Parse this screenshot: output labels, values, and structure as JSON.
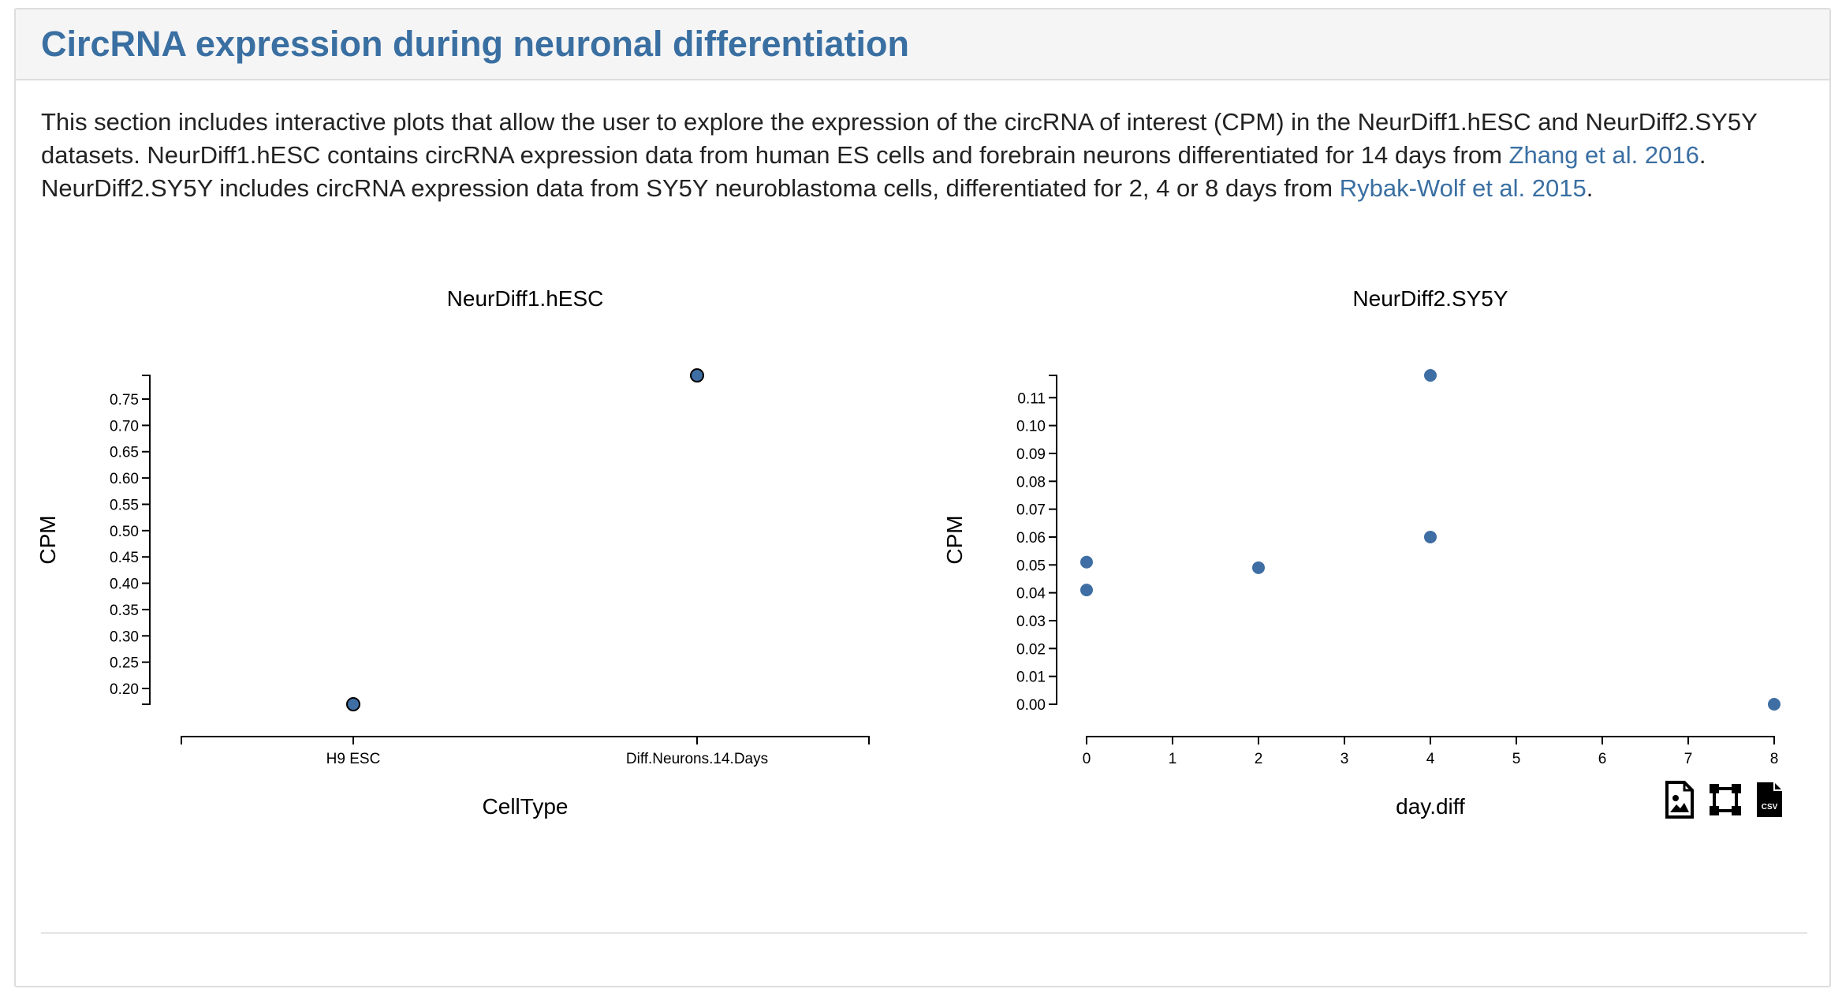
{
  "section": {
    "title": "CircRNA expression during neuronal differentiation",
    "intro": {
      "part1": "This section includes interactive plots that allow the user to explore the expression of the circRNA of interest (CPM) in the NeurDiff1.hESC and NeurDiff2.SY5Y datasets. NeurDiff1.hESC contains circRNA expression data from human ES cells and forebrain neurons differentiated for 14 days from ",
      "link1": "Zhang et al. 2016",
      "part2": ". NeurDiff2.SY5Y includes circRNA expression data from SY5Y neuroblastoma cells, differentiated for 2, 4 or 8 days from ",
      "link2": "Rybak-Wolf et al. 2015",
      "part3": "."
    }
  },
  "toolbar": {
    "icons": [
      "image-download-icon",
      "zoom-extent-icon",
      "csv-download-icon"
    ],
    "csv_label": "CSV"
  },
  "colors": {
    "point": "#3e6ea3",
    "accent": "#3a6fa2"
  },
  "chart_data": [
    {
      "type": "scatter",
      "title": "NeurDiff1.hESC",
      "xlabel": "CellType",
      "ylabel": "CPM",
      "categories": [
        "H9 ESC",
        "Diff.Neurons.14.Days"
      ],
      "points": [
        {
          "x": "H9 ESC",
          "y": 0.17
        },
        {
          "x": "Diff.Neurons.14.Days",
          "y": 0.795
        }
      ],
      "yticks": [
        0.2,
        0.25,
        0.3,
        0.35,
        0.4,
        0.45,
        0.5,
        0.55,
        0.6,
        0.65,
        0.7,
        0.75
      ],
      "ylim": [
        0.17,
        0.795
      ],
      "grid": false
    },
    {
      "type": "scatter",
      "title": "NeurDiff2.SY5Y",
      "xlabel": "day.diff",
      "ylabel": "CPM",
      "x": [
        0,
        0,
        2,
        4,
        4,
        8
      ],
      "y": [
        0.051,
        0.041,
        0.049,
        0.118,
        0.06,
        0.0
      ],
      "xticks": [
        0,
        1,
        2,
        3,
        4,
        5,
        6,
        7,
        8
      ],
      "yticks": [
        0.0,
        0.01,
        0.02,
        0.03,
        0.04,
        0.05,
        0.06,
        0.07,
        0.08,
        0.09,
        0.1,
        0.11
      ],
      "xlim": [
        0,
        8
      ],
      "ylim": [
        0,
        0.118
      ],
      "grid": false
    }
  ]
}
